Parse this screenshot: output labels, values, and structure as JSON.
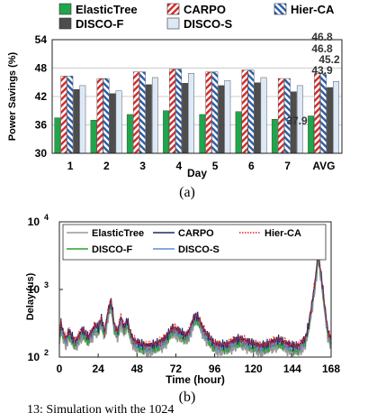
{
  "chart_data": [
    {
      "type": "bar",
      "panel_label": "(a)",
      "xlabel": "Day",
      "ylabel": "Power Savings (%)",
      "ylim": [
        30,
        54
      ],
      "yticks": [
        30,
        36,
        42,
        48,
        54
      ],
      "categories": [
        "1",
        "2",
        "3",
        "4",
        "5",
        "6",
        "7",
        "AVG"
      ],
      "legend_position": "top",
      "series": [
        {
          "name": "ElasticTree",
          "color": "#1fa64a",
          "pattern": "solid",
          "values": [
            37.5,
            37.0,
            38.2,
            39.0,
            38.2,
            38.8,
            37.2,
            37.9
          ]
        },
        {
          "name": "CARPO",
          "color": "#d62728",
          "pattern": "hatch-red",
          "values": [
            46.3,
            45.8,
            47.2,
            47.8,
            47.2,
            47.6,
            45.8,
            46.8
          ]
        },
        {
          "name": "Hier-CA",
          "color": "#2a5aa8",
          "pattern": "hatch-blue",
          "values": [
            46.3,
            45.8,
            47.2,
            47.8,
            47.2,
            47.6,
            45.8,
            46.8
          ]
        },
        {
          "name": "DISCO-F",
          "color": "#4d4d4d",
          "pattern": "solid",
          "values": [
            43.5,
            42.6,
            44.5,
            44.8,
            44.3,
            44.9,
            43.0,
            43.9
          ]
        },
        {
          "name": "DISCO-S",
          "color": "#dde9f6",
          "pattern": "solid",
          "values": [
            44.3,
            43.2,
            46.0,
            46.9,
            45.4,
            46.0,
            44.3,
            45.2
          ]
        }
      ],
      "annotations": [
        {
          "text": "46.8",
          "category": "AVG",
          "value": 46.8
        },
        {
          "text": "46.8",
          "category": "AVG",
          "value": 46.8
        },
        {
          "text": "45.2",
          "category": "AVG",
          "value": 45.2
        },
        {
          "text": "43.9",
          "category": "AVG",
          "value": 43.9
        },
        {
          "text": "37.9",
          "category": "AVG",
          "value": 37.9
        }
      ]
    },
    {
      "type": "line",
      "panel_label": "(b)",
      "xlabel": "Time (hour)",
      "ylabel": "Delay (us)",
      "y_scale": "log",
      "ylim": [
        100,
        10000
      ],
      "yticks": [
        {
          "base": "10",
          "exp": "2",
          "value": 100
        },
        {
          "base": "10",
          "exp": "3",
          "value": 1000
        },
        {
          "base": "10",
          "exp": "4",
          "value": 10000
        }
      ],
      "xlim": [
        0,
        168
      ],
      "xticks": [
        0,
        24,
        48,
        72,
        96,
        120,
        144,
        168
      ],
      "legend_position": "top",
      "series": [
        {
          "name": "ElasticTree",
          "color": "#999999",
          "style": "solid"
        },
        {
          "name": "CARPO",
          "color": "#1a2a6c",
          "style": "solid"
        },
        {
          "name": "Hier-CA",
          "color": "#e0201c",
          "style": "dotted"
        },
        {
          "name": "DISCO-F",
          "color": "#2ca02c",
          "style": "solid"
        },
        {
          "name": "DISCO-S",
          "color": "#5b8fd6",
          "style": "solid"
        }
      ],
      "base_profile": {
        "x": [
          0,
          1,
          2,
          4,
          6,
          8,
          10,
          12,
          14,
          16,
          18,
          20,
          22,
          24,
          26,
          28,
          30,
          32,
          34,
          36,
          38,
          40,
          42,
          44,
          46,
          48,
          50,
          54,
          58,
          62,
          66,
          70,
          74,
          78,
          80,
          82,
          84,
          86,
          88,
          90,
          92,
          94,
          96,
          100,
          104,
          108,
          112,
          116,
          120,
          124,
          128,
          132,
          136,
          140,
          144,
          148,
          152,
          154,
          156,
          158,
          159,
          160,
          161,
          162,
          163,
          164,
          166,
          168
        ],
        "y": [
          200,
          330,
          250,
          190,
          250,
          200,
          170,
          210,
          260,
          230,
          200,
          240,
          300,
          280,
          380,
          240,
          480,
          720,
          300,
          240,
          400,
          280,
          360,
          230,
          180,
          170,
          160,
          150,
          155,
          170,
          200,
          280,
          250,
          210,
          240,
          330,
          420,
          390,
          300,
          240,
          210,
          180,
          160,
          155,
          155,
          180,
          190,
          175,
          160,
          150,
          155,
          175,
          185,
          165,
          150,
          150,
          190,
          300,
          600,
          1300,
          2100,
          3600,
          2400,
          1600,
          1000,
          600,
          250,
          180
        ]
      },
      "scale_factors": {
        "ElasticTree": 0.78,
        "CARPO": 1.0,
        "Hier-CA": 1.0,
        "DISCO-F": 0.86,
        "DISCO-S": 0.92
      }
    }
  ],
  "caption": {
    "fragment": "13: Simulation with the 1024"
  }
}
